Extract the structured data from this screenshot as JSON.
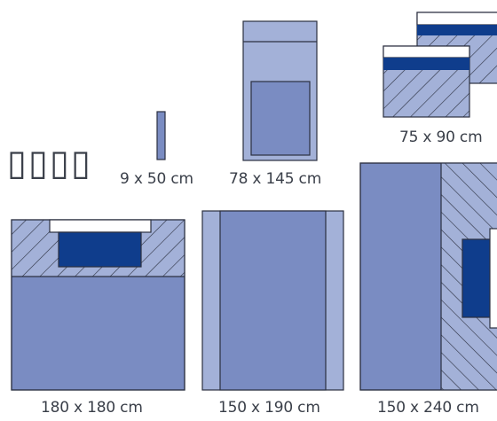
{
  "placeholder_glyphs": "▯▯▯▯",
  "drapes": [
    {
      "label": "9 x 50 cm"
    },
    {
      "label": "78 x 145 cm"
    },
    {
      "label": "75 x 90 cm"
    },
    {
      "label": "180 x 180 cm"
    },
    {
      "label": "150 x 190 cm"
    },
    {
      "label": "150 x 240 cm"
    }
  ],
  "colors": {
    "light": "#a3b1d8",
    "mid": "#7a8cc2",
    "dark": "#0f3d8c",
    "outline": "#2b3040",
    "text": "#3a3f49"
  }
}
